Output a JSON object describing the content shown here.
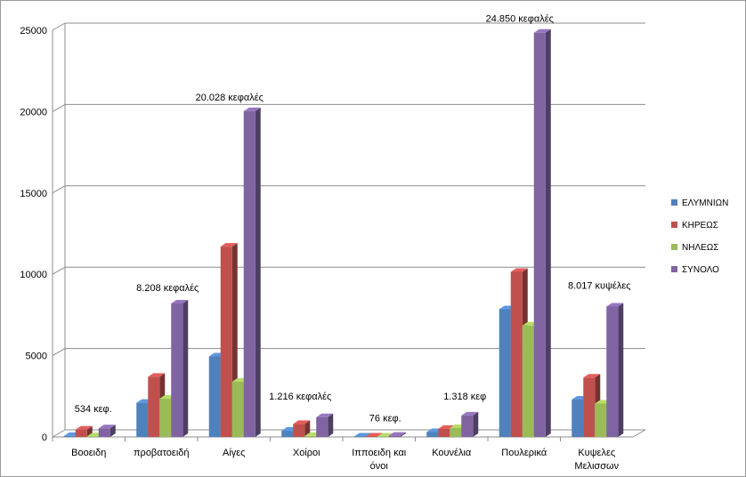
{
  "chart_data": {
    "type": "bar",
    "title": "",
    "xlabel": "",
    "ylabel": "",
    "ylim": [
      0,
      25000
    ],
    "yticks": [
      "0",
      "5000",
      "10000",
      "15000",
      "20000",
      "25000"
    ],
    "ytick_values": [
      0,
      5000,
      10000,
      15000,
      20000,
      25000
    ],
    "grid": true,
    "legend_position": "right",
    "categories": [
      [
        "Βοοειδη"
      ],
      [
        "προβατοειδή"
      ],
      [
        "Αίγες"
      ],
      [
        "Χοίροι"
      ],
      [
        "Ιπποειδη και",
        "όνοι"
      ],
      [
        "Κουνέλια"
      ],
      [
        "Πουλερικά"
      ],
      [
        "Κυψελες",
        "Μελισσων"
      ]
    ],
    "series": [
      {
        "name": "ΕΛΥΜΝΙΩΝ",
        "color": "#4F81BD",
        "values": [
          60,
          2100,
          4950,
          380,
          25,
          300,
          7850,
          2300
        ]
      },
      {
        "name": "ΚΗΡΕΩΣ",
        "color": "#C0504D",
        "values": [
          450,
          3700,
          11700,
          800,
          30,
          500,
          10150,
          3650
        ]
      },
      {
        "name": "ΝΗΛΕΩΣ",
        "color": "#9BBB59",
        "values": [
          40,
          2350,
          3400,
          60,
          20,
          550,
          6850,
          2050
        ]
      },
      {
        "name": "ΣΥΝΟΛΟ",
        "color": "#8064A2",
        "values": [
          534,
          8208,
          20028,
          1216,
          76,
          1318,
          24850,
          8017
        ]
      }
    ],
    "annotations": [
      {
        "category_index": 0,
        "text": "534 κεφ."
      },
      {
        "category_index": 1,
        "text": "8.208 κεφαλές"
      },
      {
        "category_index": 2,
        "text": "20.028 κεφαλές"
      },
      {
        "category_index": 3,
        "text": "1.216 κεφαλές"
      },
      {
        "category_index": 4,
        "text": "76 κεφ."
      },
      {
        "category_index": 5,
        "text": "1.318 κεφ"
      },
      {
        "category_index": 6,
        "text": "24.850 κεφαλές"
      },
      {
        "category_index": 7,
        "text": "8.017 κυψέλες"
      }
    ]
  }
}
